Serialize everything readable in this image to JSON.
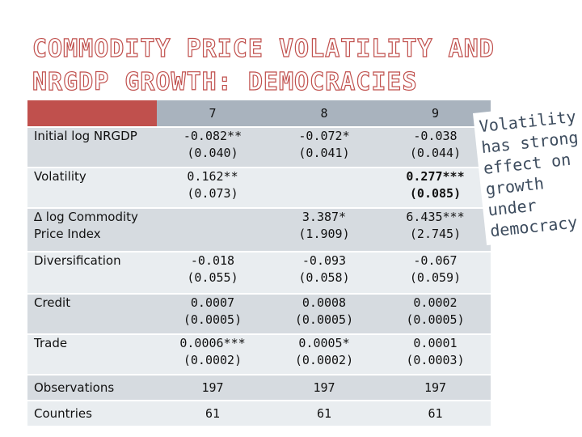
{
  "slide": {
    "title_line1": "COMMODITY PRICE VOLATILITY AND",
    "title_line2": "NRGDP GROWTH: DEMOCRACIES",
    "colors": {
      "title_outline": "#c0504d",
      "header_fill": "#a9b3be",
      "row_dark": "#d6dbe0",
      "row_light": "#e9edf0",
      "note_text": "#3d4c5e"
    }
  },
  "table": {
    "headers": [
      "",
      "7",
      "8",
      "9"
    ],
    "rows": [
      {
        "label": "Initial log NRGDP",
        "cells": [
          [
            "-0.082**",
            "(0.040)"
          ],
          [
            "-0.072*",
            "(0.041)"
          ],
          [
            "-0.038",
            "(0.044)"
          ]
        ]
      },
      {
        "label": "Volatility",
        "cells": [
          [
            "0.162**",
            "(0.073)"
          ],
          [
            "",
            ""
          ],
          [
            "0.277***",
            "(0.085)"
          ]
        ]
      },
      {
        "label_line1": "∆ log Commodity",
        "label_line2": "Price Index",
        "cells": [
          [
            "",
            ""
          ],
          [
            "3.387*",
            "(1.909)"
          ],
          [
            "6.435***",
            "(2.745)"
          ]
        ]
      },
      {
        "label": "Diversification",
        "cells": [
          [
            "-0.018",
            "(0.055)"
          ],
          [
            "-0.093",
            "(0.058)"
          ],
          [
            "-0.067",
            "(0.059)"
          ]
        ]
      },
      {
        "label": "Credit",
        "cells": [
          [
            "0.0007",
            "(0.0005)"
          ],
          [
            "0.0008",
            "(0.0005)"
          ],
          [
            "0.0002",
            "(0.0005)"
          ]
        ]
      },
      {
        "label": "Trade",
        "cells": [
          [
            "0.0006***",
            "(0.0002)"
          ],
          [
            "0.0005*",
            "(0.0002)"
          ],
          [
            "0.0001",
            "(0.0003)"
          ]
        ]
      },
      {
        "label": "Observations",
        "cells": [
          [
            "197"
          ],
          [
            "197"
          ],
          [
            "197"
          ]
        ]
      },
      {
        "label": "Countries",
        "cells": [
          [
            "61"
          ],
          [
            "61"
          ],
          [
            "61"
          ]
        ]
      }
    ]
  },
  "note": {
    "line1": "Volatility",
    "line2": "has strong",
    "line3": "effect on",
    "line4": "growth",
    "line5": "under",
    "line6": "democracy"
  }
}
